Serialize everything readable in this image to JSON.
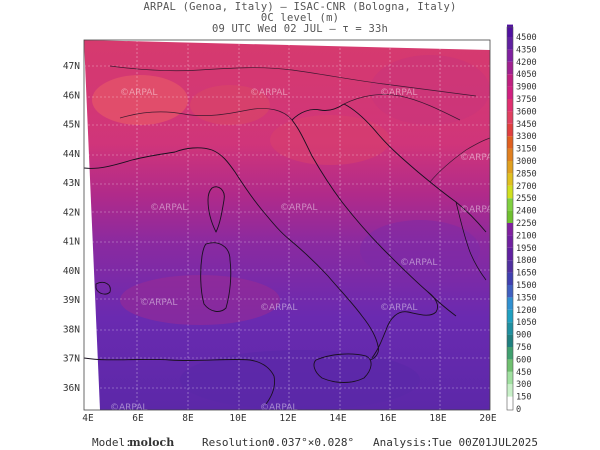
{
  "header": {
    "line1": "ARPAL (Genoa, Italy)  –  ISAC-CNR (Bologna, Italy)",
    "line2": "0C level (m)",
    "line3": "09 UTC Wed 02 JUL  –  τ = 33h"
  },
  "map": {
    "lon_ticks": [
      "4E",
      "6E",
      "8E",
      "10E",
      "12E",
      "14E",
      "16E",
      "18E",
      "20E"
    ],
    "lat_ticks": [
      "36N",
      "37N",
      "38N",
      "39N",
      "40N",
      "41N",
      "42N",
      "43N",
      "44N",
      "45N",
      "46N",
      "47N"
    ],
    "watermark": "ARPAL",
    "colors": {
      "high": "#e0406a",
      "mid": "#c0307a",
      "low": "#6a2ab0",
      "lowest": "#5a28a8"
    }
  },
  "colorbar": {
    "labels": [
      "0",
      "150",
      "300",
      "450",
      "600",
      "750",
      "900",
      "1050",
      "1200",
      "1350",
      "1500",
      "1650",
      "1800",
      "1950",
      "2100",
      "2250",
      "2400",
      "2550",
      "2700",
      "2850",
      "3000",
      "3150",
      "3300",
      "3450",
      "3600",
      "3750",
      "3900",
      "4050",
      "4200",
      "4350",
      "4500"
    ],
    "colors": [
      "#ffffff",
      "#c8f0c8",
      "#a0e0a0",
      "#70c070",
      "#40a070",
      "#208080",
      "#2090a0",
      "#20a0c0",
      "#3090d0",
      "#4060c0",
      "#4040b0",
      "#5030a0",
      "#6020a0",
      "#7020a0",
      "#8020a0",
      "#70c030",
      "#80d040",
      "#d0e020",
      "#e0c020",
      "#e0a020",
      "#e08020",
      "#e06020",
      "#e04040",
      "#e04060",
      "#e03070",
      "#d02080",
      "#c02080",
      "#a02090",
      "#8020a0",
      "#6020a0",
      "#5010a0"
    ]
  },
  "footer": {
    "model_label": "Model:",
    "model_value": "moloch",
    "resolution_label": "Resolution:",
    "resolution_value": "0.037°×0.028°",
    "analysis_label": "Analysis:",
    "analysis_value": "Tue 00Z01JUL2025"
  }
}
